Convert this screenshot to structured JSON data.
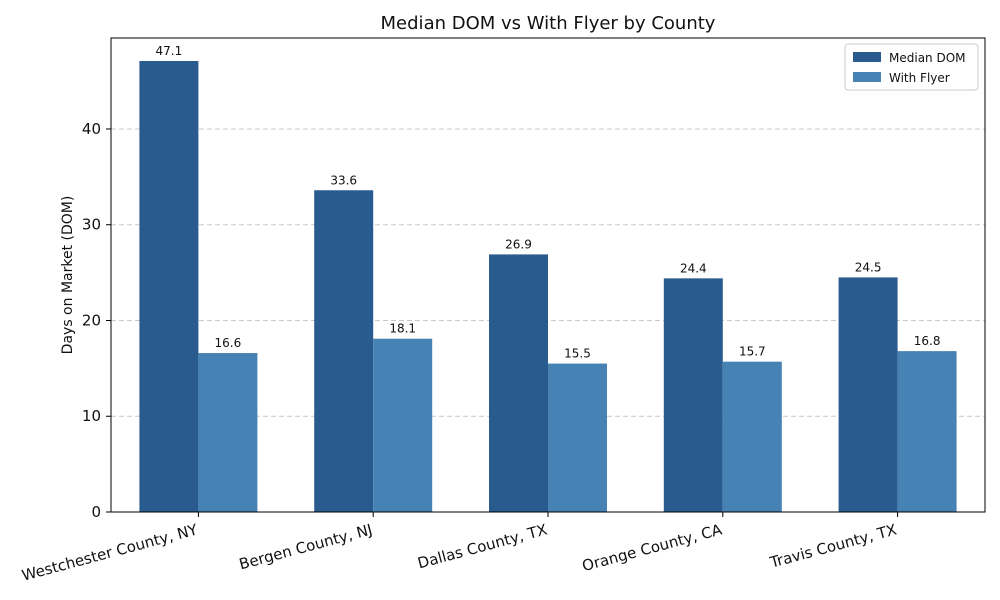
{
  "chart_data": {
    "type": "bar",
    "title": "Median DOM vs With Flyer by County",
    "xlabel": "",
    "ylabel": "Days on Market (DOM)",
    "categories": [
      "Westchester County, NY",
      "Bergen County, NJ",
      "Dallas County, TX",
      "Orange County, CA",
      "Travis County, TX"
    ],
    "series": [
      {
        "name": "Median DOM",
        "color": "#2a5b8f",
        "values": [
          47.1,
          33.6,
          26.9,
          24.4,
          24.5
        ]
      },
      {
        "name": "With Flyer",
        "color": "#4682b4",
        "values": [
          16.6,
          18.1,
          15.5,
          15.7,
          16.8
        ]
      }
    ],
    "ylim": [
      0,
      49.5
    ],
    "yticks": [
      0,
      10,
      20,
      30,
      40
    ],
    "grid": true,
    "legend_position": "top-right"
  }
}
